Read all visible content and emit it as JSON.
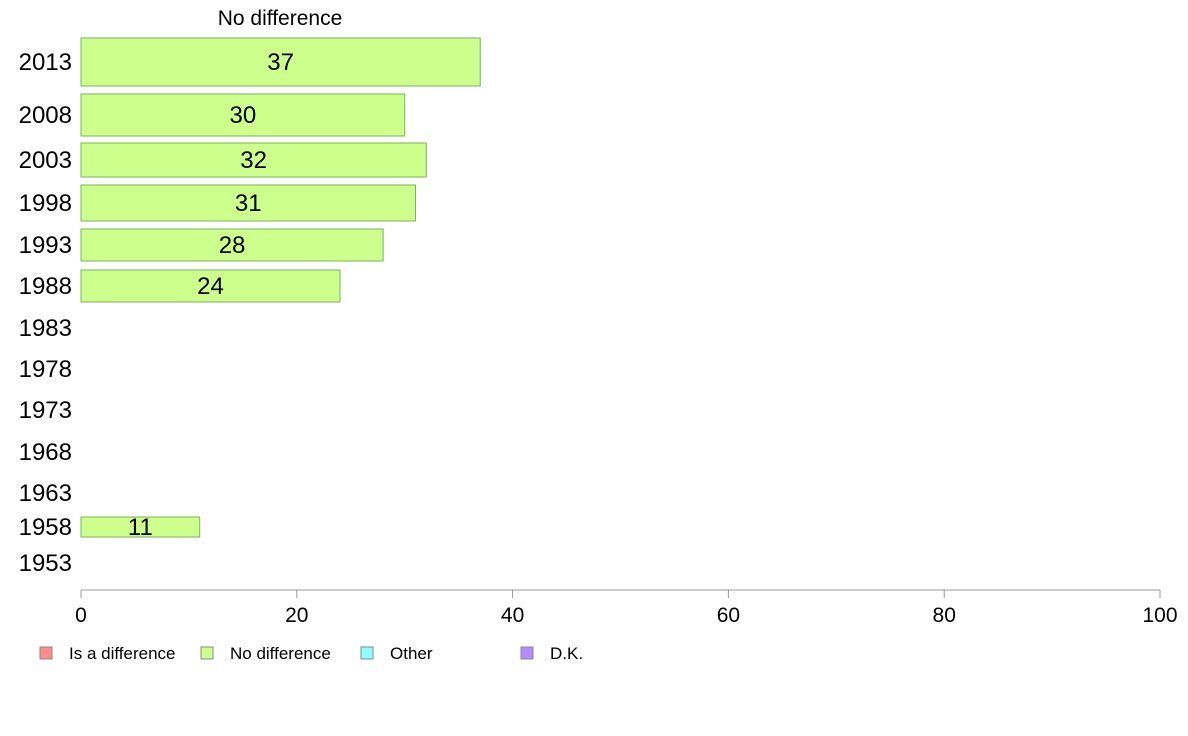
{
  "chart_data": {
    "type": "bar",
    "orientation": "horizontal",
    "title": "No difference",
    "categories": [
      "2013",
      "2008",
      "2003",
      "1998",
      "1993",
      "1988",
      "1983",
      "1978",
      "1973",
      "1968",
      "1963",
      "1958",
      "1953"
    ],
    "series": [
      {
        "name": "No difference",
        "color": "#ccff8c",
        "values": [
          37,
          30,
          32,
          31,
          28,
          24,
          null,
          null,
          null,
          null,
          null,
          11,
          null
        ]
      }
    ],
    "xlim": [
      0,
      100
    ],
    "xticks": [
      "0",
      "20",
      "40",
      "60",
      "80",
      "100"
    ],
    "grid": false,
    "legend": {
      "placement": "bottom-left",
      "entries": [
        {
          "label": "Is a difference",
          "color": "#ff8c8c"
        },
        {
          "label": "No difference",
          "color": "#ccff8c"
        },
        {
          "label": "Other",
          "color": "#8cffff"
        },
        {
          "label": "D.K.",
          "color": "#b48cff"
        }
      ]
    }
  }
}
